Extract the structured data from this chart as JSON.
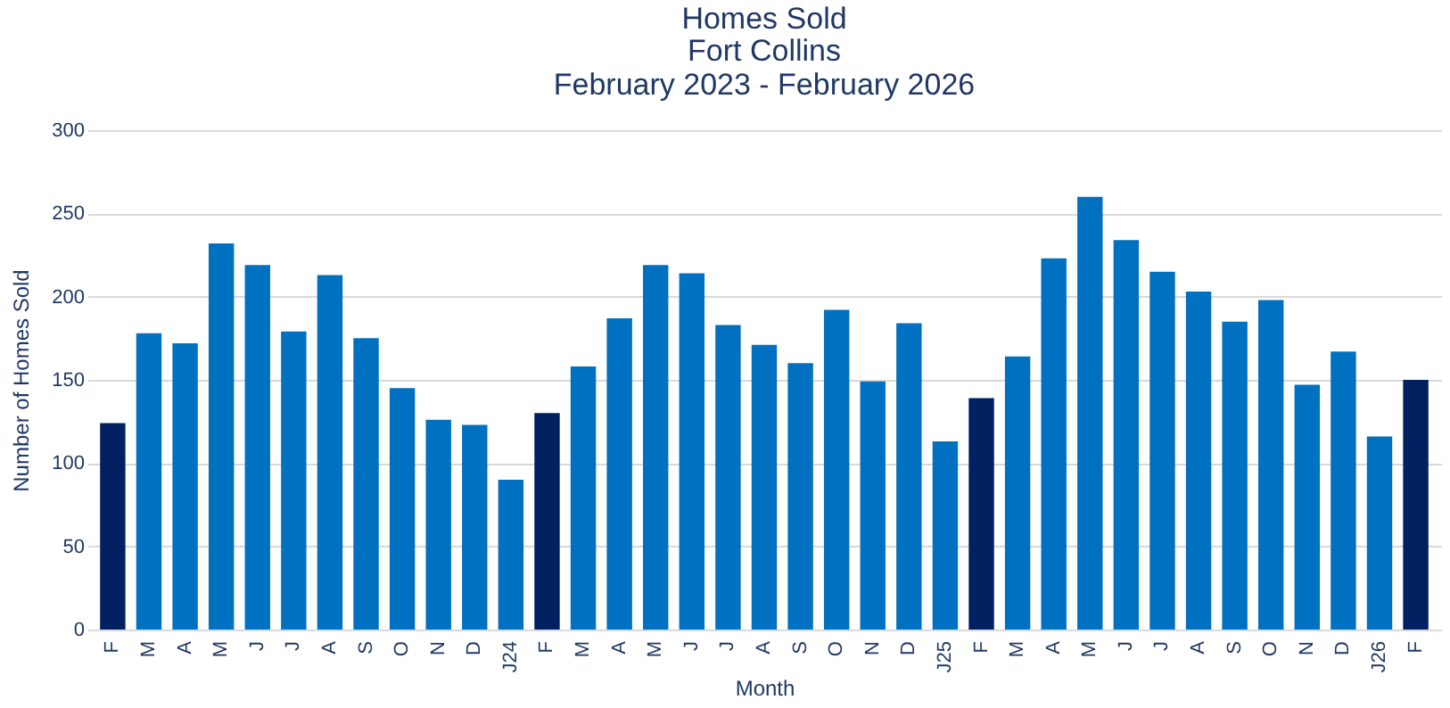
{
  "chart_data": {
    "type": "bar",
    "title": "Homes Sold",
    "subtitle": [
      "Fort Collins",
      "February 2023 - February 2026"
    ],
    "xlabel": "Month",
    "ylabel": "Number of Homes Sold",
    "categories": [
      "F",
      "M",
      "A",
      "M",
      "J",
      "J",
      "A",
      "S",
      "O",
      "N",
      "D",
      "J24",
      "F",
      "M",
      "A",
      "M",
      "J",
      "J",
      "A",
      "S",
      "O",
      "N",
      "D",
      "J25",
      "F",
      "M",
      "A",
      "M",
      "J",
      "J",
      "A",
      "S",
      "O",
      "N",
      "D",
      "J26",
      "F"
    ],
    "values": [
      124,
      178,
      172,
      232,
      219,
      179,
      213,
      175,
      145,
      126,
      123,
      90,
      130,
      158,
      187,
      219,
      214,
      183,
      171,
      160,
      192,
      149,
      184,
      113,
      139,
      164,
      223,
      260,
      234,
      215,
      203,
      185,
      198,
      147,
      167,
      116,
      150
    ],
    "colors": [
      "#002060",
      "#0070c0",
      "#0070c0",
      "#0070c0",
      "#0070c0",
      "#0070c0",
      "#0070c0",
      "#0070c0",
      "#0070c0",
      "#0070c0",
      "#0070c0",
      "#0070c0",
      "#002060",
      "#0070c0",
      "#0070c0",
      "#0070c0",
      "#0070c0",
      "#0070c0",
      "#0070c0",
      "#0070c0",
      "#0070c0",
      "#0070c0",
      "#0070c0",
      "#0070c0",
      "#002060",
      "#0070c0",
      "#0070c0",
      "#0070c0",
      "#0070c0",
      "#0070c0",
      "#0070c0",
      "#0070c0",
      "#0070c0",
      "#0070c0",
      "#0070c0",
      "#0070c0",
      "#002060"
    ],
    "ylim": [
      0,
      300
    ],
    "yticks": [
      0,
      50,
      100,
      150,
      200,
      250,
      300
    ],
    "grid": "y"
  }
}
